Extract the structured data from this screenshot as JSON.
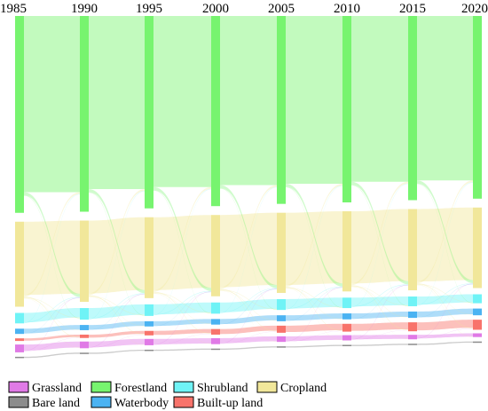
{
  "chart_data": {
    "type": "sankey",
    "title": "",
    "years": [
      "1985",
      "1990",
      "1995",
      "2000",
      "2005",
      "2010",
      "2015",
      "2020"
    ],
    "categories": [
      {
        "key": "forest",
        "name": "Forestland",
        "color": "#77f46f"
      },
      {
        "key": "crop",
        "name": "Cropland",
        "color": "#f1e79a"
      },
      {
        "key": "shrub",
        "name": "Shrubland",
        "color": "#6ff3f6"
      },
      {
        "key": "water",
        "name": "Waterbody",
        "color": "#4bb3f2"
      },
      {
        "key": "built",
        "name": "Built-up land",
        "color": "#f8736b"
      },
      {
        "key": "grass",
        "name": "Grassland",
        "color": "#e07ae6"
      },
      {
        "key": "bare",
        "name": "Bare land",
        "color": "#8c8c8c"
      }
    ],
    "shares_percent": {
      "forest": [
        52.8,
        52.5,
        51.6,
        51.0,
        50.4,
        50.0,
        49.4,
        49.0
      ],
      "crop": [
        22.8,
        21.8,
        21.7,
        21.8,
        21.5,
        21.5,
        21.8,
        21.6
      ],
      "shrub": [
        2.8,
        3.1,
        3.1,
        3.0,
        2.9,
        2.8,
        2.6,
        2.4
      ],
      "water": [
        1.4,
        1.4,
        1.4,
        1.5,
        1.6,
        1.6,
        1.7,
        1.8
      ],
      "built": [
        0.7,
        0.9,
        1.2,
        1.5,
        1.9,
        2.1,
        2.4,
        2.7
      ],
      "grass": [
        2.1,
        1.8,
        1.7,
        1.6,
        1.5,
        1.4,
        1.2,
        1.0
      ],
      "bare": [
        0.3,
        0.3,
        0.3,
        0.3,
        0.3,
        0.3,
        0.3,
        0.3
      ]
    },
    "legend": {
      "placement": "bottom",
      "rows": [
        [
          "grass",
          "forest",
          "shrub",
          "crop"
        ],
        [
          "bare",
          "water",
          "built"
        ]
      ]
    }
  }
}
